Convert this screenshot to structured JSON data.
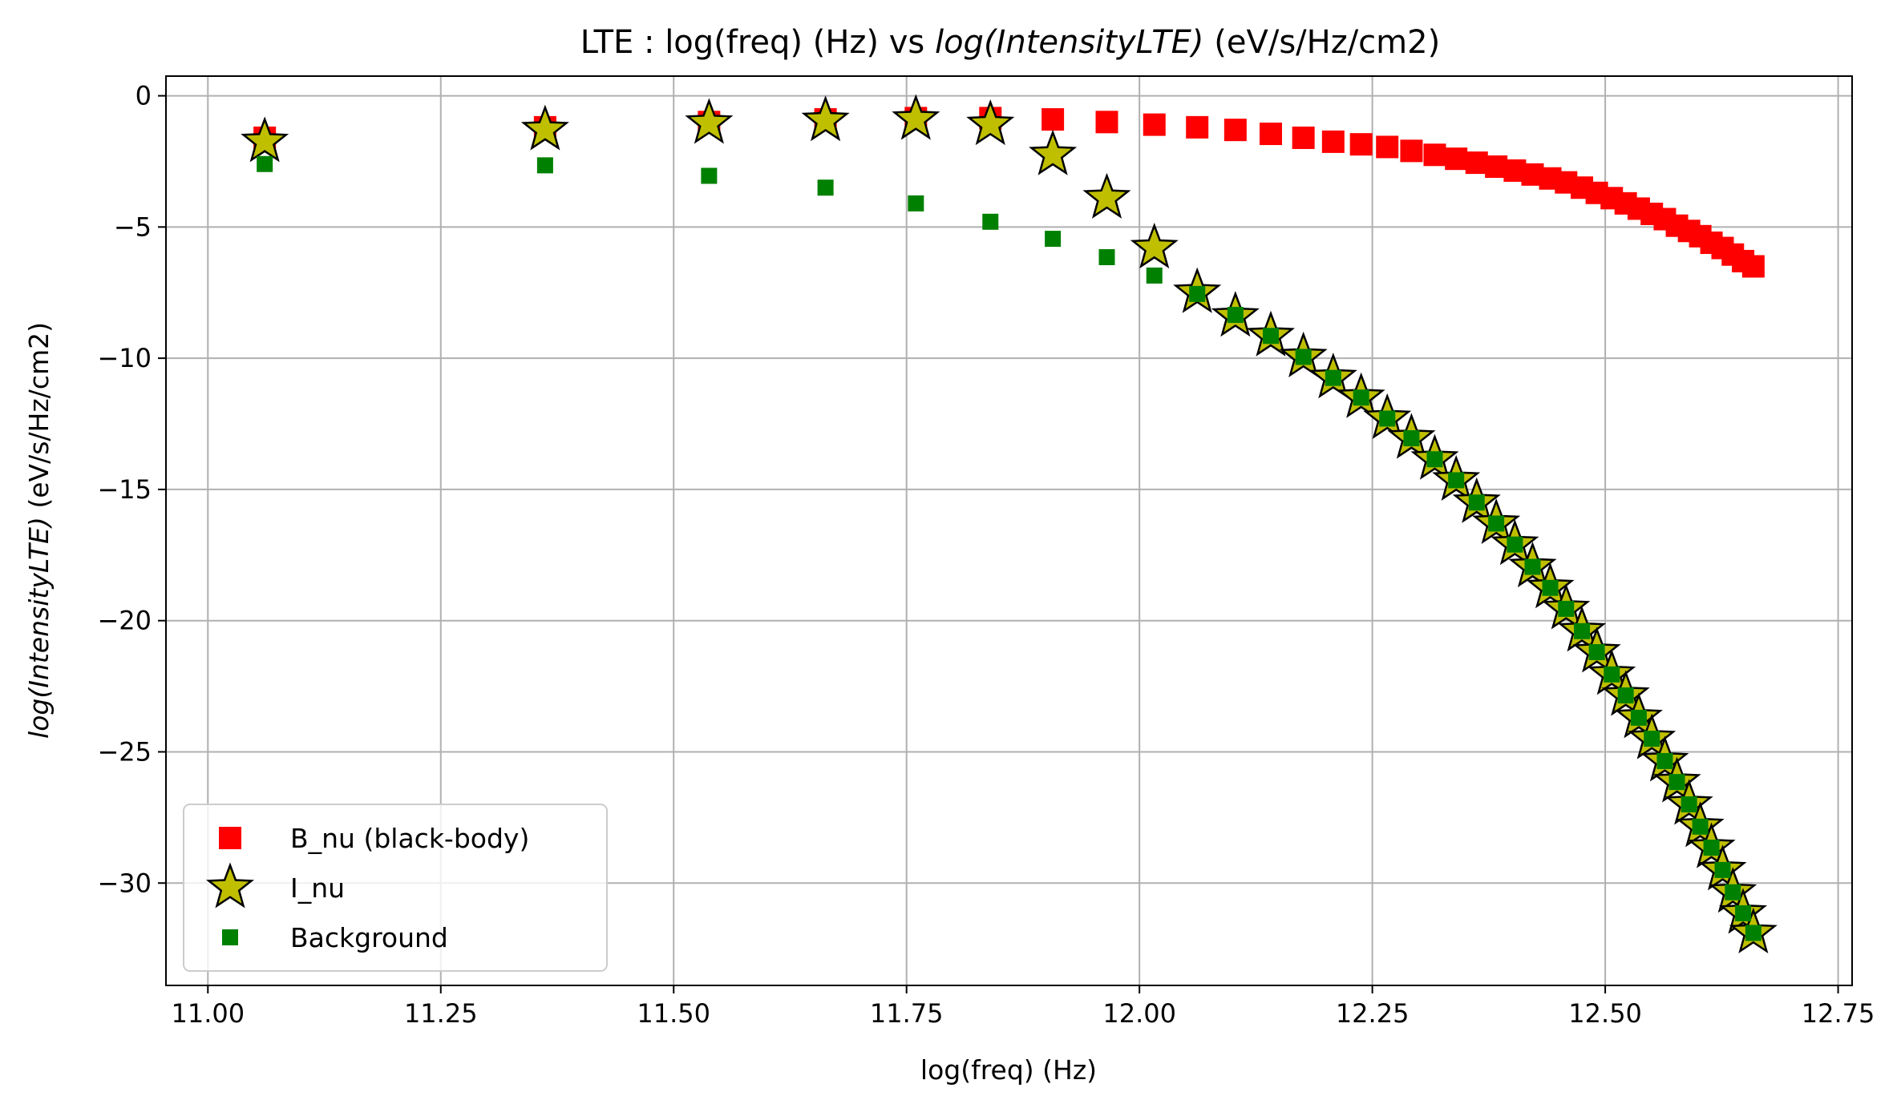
{
  "chart_data": {
    "type": "scatter",
    "title_prefix": "LTE : log(freq) (Hz) vs ",
    "title_italic": "log(IntensityLTE)",
    "title_suffix": " (eV/s/Hz/cm2)",
    "xlabel": "log(freq) (Hz)",
    "ylabel_italic": "log(IntensityLTE)",
    "ylabel_suffix": " (eV/s/Hz/cm2)",
    "xlim": [
      10.955,
      12.765
    ],
    "ylim": [
      -33.9,
      0.75
    ],
    "xticks": [
      11.0,
      11.25,
      11.5,
      11.75,
      12.0,
      12.25,
      12.5,
      12.75
    ],
    "xtick_labels": [
      "11.00",
      "11.25",
      "11.50",
      "11.75",
      "12.00",
      "12.25",
      "12.50",
      "12.75"
    ],
    "yticks": [
      0,
      -5,
      -10,
      -15,
      -20,
      -25,
      -30
    ],
    "ytick_labels": [
      "0",
      "−5",
      "−10",
      "−15",
      "−20",
      "−25",
      "−30"
    ],
    "grid": true,
    "legend_position": "lower-left",
    "series": [
      {
        "name": "B_nu (black-body)",
        "marker": "square",
        "color": "#ff0000",
        "x": [
          11.061,
          11.362,
          11.538,
          11.663,
          11.76,
          11.84,
          11.907,
          11.965,
          12.016,
          12.062,
          12.103,
          12.141,
          12.176,
          12.208,
          12.238,
          12.266,
          12.292,
          12.317,
          12.34,
          12.362,
          12.383,
          12.403,
          12.422,
          12.441,
          12.458,
          12.475,
          12.491,
          12.507,
          12.522,
          12.536,
          12.55,
          12.564,
          12.577,
          12.59,
          12.602,
          12.614,
          12.626,
          12.637,
          12.648,
          12.659
        ],
        "y": [
          -1.6,
          -1.2,
          -1.0,
          -0.9,
          -0.85,
          -0.85,
          -0.9,
          -1.0,
          -1.1,
          -1.2,
          -1.3,
          -1.45,
          -1.6,
          -1.75,
          -1.85,
          -1.95,
          -2.1,
          -2.25,
          -2.4,
          -2.55,
          -2.7,
          -2.85,
          -3.0,
          -3.15,
          -3.3,
          -3.5,
          -3.7,
          -3.9,
          -4.1,
          -4.3,
          -4.5,
          -4.7,
          -4.95,
          -5.15,
          -5.35,
          -5.6,
          -5.8,
          -6.05,
          -6.3,
          -6.5
        ]
      },
      {
        "name": "I_nu",
        "marker": "star",
        "color": "#bfbf00",
        "x": [
          11.061,
          11.362,
          11.538,
          11.663,
          11.76,
          11.84,
          11.907,
          11.965,
          12.016,
          12.062,
          12.103,
          12.141,
          12.176,
          12.208,
          12.238,
          12.266,
          12.292,
          12.317,
          12.34,
          12.362,
          12.383,
          12.403,
          12.422,
          12.441,
          12.458,
          12.475,
          12.491,
          12.507,
          12.522,
          12.536,
          12.55,
          12.564,
          12.577,
          12.59,
          12.602,
          12.614,
          12.626,
          12.637,
          12.648,
          12.659
        ],
        "y": [
          -1.75,
          -1.3,
          -1.05,
          -0.95,
          -0.9,
          -1.1,
          -2.25,
          -3.9,
          -5.8,
          -7.5,
          -8.4,
          -9.15,
          -9.95,
          -10.75,
          -11.5,
          -12.3,
          -13.05,
          -13.85,
          -14.65,
          -15.5,
          -16.3,
          -17.1,
          -17.95,
          -18.75,
          -19.55,
          -20.4,
          -21.2,
          -22.05,
          -22.85,
          -23.7,
          -24.5,
          -25.35,
          -26.15,
          -27.0,
          -27.85,
          -28.65,
          -29.5,
          -30.35,
          -31.15,
          -31.9
        ]
      },
      {
        "name": "Background",
        "marker": "square-small",
        "color": "#008000",
        "x": [
          11.061,
          11.362,
          11.538,
          11.663,
          11.76,
          11.84,
          11.907,
          11.965,
          12.016,
          12.062,
          12.103,
          12.141,
          12.176,
          12.208,
          12.238,
          12.266,
          12.292,
          12.317,
          12.34,
          12.362,
          12.383,
          12.403,
          12.422,
          12.441,
          12.458,
          12.475,
          12.491,
          12.507,
          12.522,
          12.536,
          12.55,
          12.564,
          12.577,
          12.59,
          12.602,
          12.614,
          12.626,
          12.637,
          12.648,
          12.659
        ],
        "y": [
          -2.6,
          -2.65,
          -3.05,
          -3.5,
          -4.1,
          -4.8,
          -5.45,
          -6.15,
          -6.85,
          -7.55,
          -8.35,
          -9.15,
          -9.95,
          -10.75,
          -11.5,
          -12.3,
          -13.05,
          -13.85,
          -14.65,
          -15.5,
          -16.3,
          -17.1,
          -17.95,
          -18.75,
          -19.55,
          -20.4,
          -21.2,
          -22.05,
          -22.85,
          -23.7,
          -24.5,
          -25.35,
          -26.15,
          -27.0,
          -27.85,
          -28.65,
          -29.5,
          -30.35,
          -31.15,
          -31.9
        ]
      }
    ]
  }
}
